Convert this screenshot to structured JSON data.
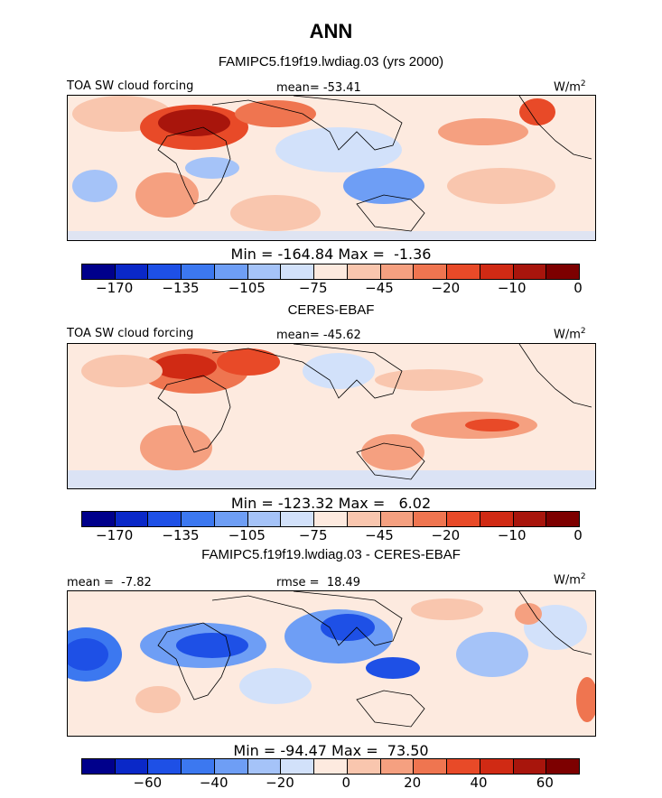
{
  "header": {
    "title": "ANN",
    "subtitle": "FAMIPC5.f19f19.lwdiag.03 (yrs 2000)"
  },
  "panels": [
    {
      "label": "TOA SW cloud forcing",
      "mean_text": "mean= -53.41",
      "units": "W/m",
      "units_sup": "2",
      "stats": "Min = -164.84 Max =  -1.36",
      "caption": "CERES-EBAF",
      "colorbar_ticks": [
        "-170",
        "-135",
        "-105",
        "-75",
        "-45",
        "-20",
        "-10",
        "0"
      ]
    },
    {
      "label": "TOA SW cloud forcing",
      "mean_text": "mean= -45.62",
      "units": "W/m",
      "units_sup": "2",
      "stats": "Min = -123.32 Max =   6.02",
      "caption": "FAMIPC5.f19f19.lwdiag.03 - CERES-EBAF",
      "colorbar_ticks": [
        "-170",
        "-135",
        "-105",
        "-75",
        "-45",
        "-20",
        "-10",
        "0"
      ]
    },
    {
      "label": "mean =  -7.82",
      "mean_text": "rmse =  18.49",
      "units": "W/m",
      "units_sup": "2",
      "stats": "Min = -94.47 Max =  73.50",
      "colorbar_ticks": [
        "-60",
        "-40",
        "-20",
        "0",
        "20",
        "40",
        "60"
      ]
    }
  ],
  "colors": {
    "abs_scale": [
      "#00008b",
      "#0a28c8",
      "#1e50e6",
      "#3c78f0",
      "#6e9ef5",
      "#a5c3f8",
      "#d2e1fa",
      "#fdeadf",
      "#f9c6ae",
      "#f5a080",
      "#ef7550",
      "#e84a28",
      "#d02a14",
      "#a8150c",
      "#7d0000"
    ],
    "diff_scale": [
      "#00008b",
      "#0a28c8",
      "#1e50e6",
      "#3c78f0",
      "#6e9ef5",
      "#a5c3f8",
      "#d2e1fa",
      "#fdeadf",
      "#f9c6ae",
      "#f5a080",
      "#ef7550",
      "#e84a28",
      "#d02a14",
      "#a8150c",
      "#7d0000"
    ]
  },
  "chart_data": [
    {
      "type": "heatmap",
      "title": "ANN",
      "subtitle": "FAMIPC5.f19f19.lwdiag.03 (yrs 2000)",
      "variable": "TOA SW cloud forcing",
      "units": "W/m2",
      "mean": -53.41,
      "min": -164.84,
      "max": -1.36,
      "colorbar_levels": [
        -170,
        -135,
        -105,
        -75,
        -45,
        -20,
        -10,
        0
      ]
    },
    {
      "type": "heatmap",
      "title": "CERES-EBAF",
      "variable": "TOA SW cloud forcing",
      "units": "W/m2",
      "mean": -45.62,
      "min": -123.32,
      "max": 6.02,
      "colorbar_levels": [
        -170,
        -135,
        -105,
        -75,
        -45,
        -20,
        -10,
        0
      ]
    },
    {
      "type": "heatmap",
      "title": "FAMIPC5.f19f19.lwdiag.03 - CERES-EBAF",
      "units": "W/m2",
      "mean": -7.82,
      "rmse": 18.49,
      "min": -94.47,
      "max": 73.5,
      "colorbar_levels": [
        -60,
        -40,
        -20,
        0,
        20,
        40,
        60
      ]
    }
  ]
}
